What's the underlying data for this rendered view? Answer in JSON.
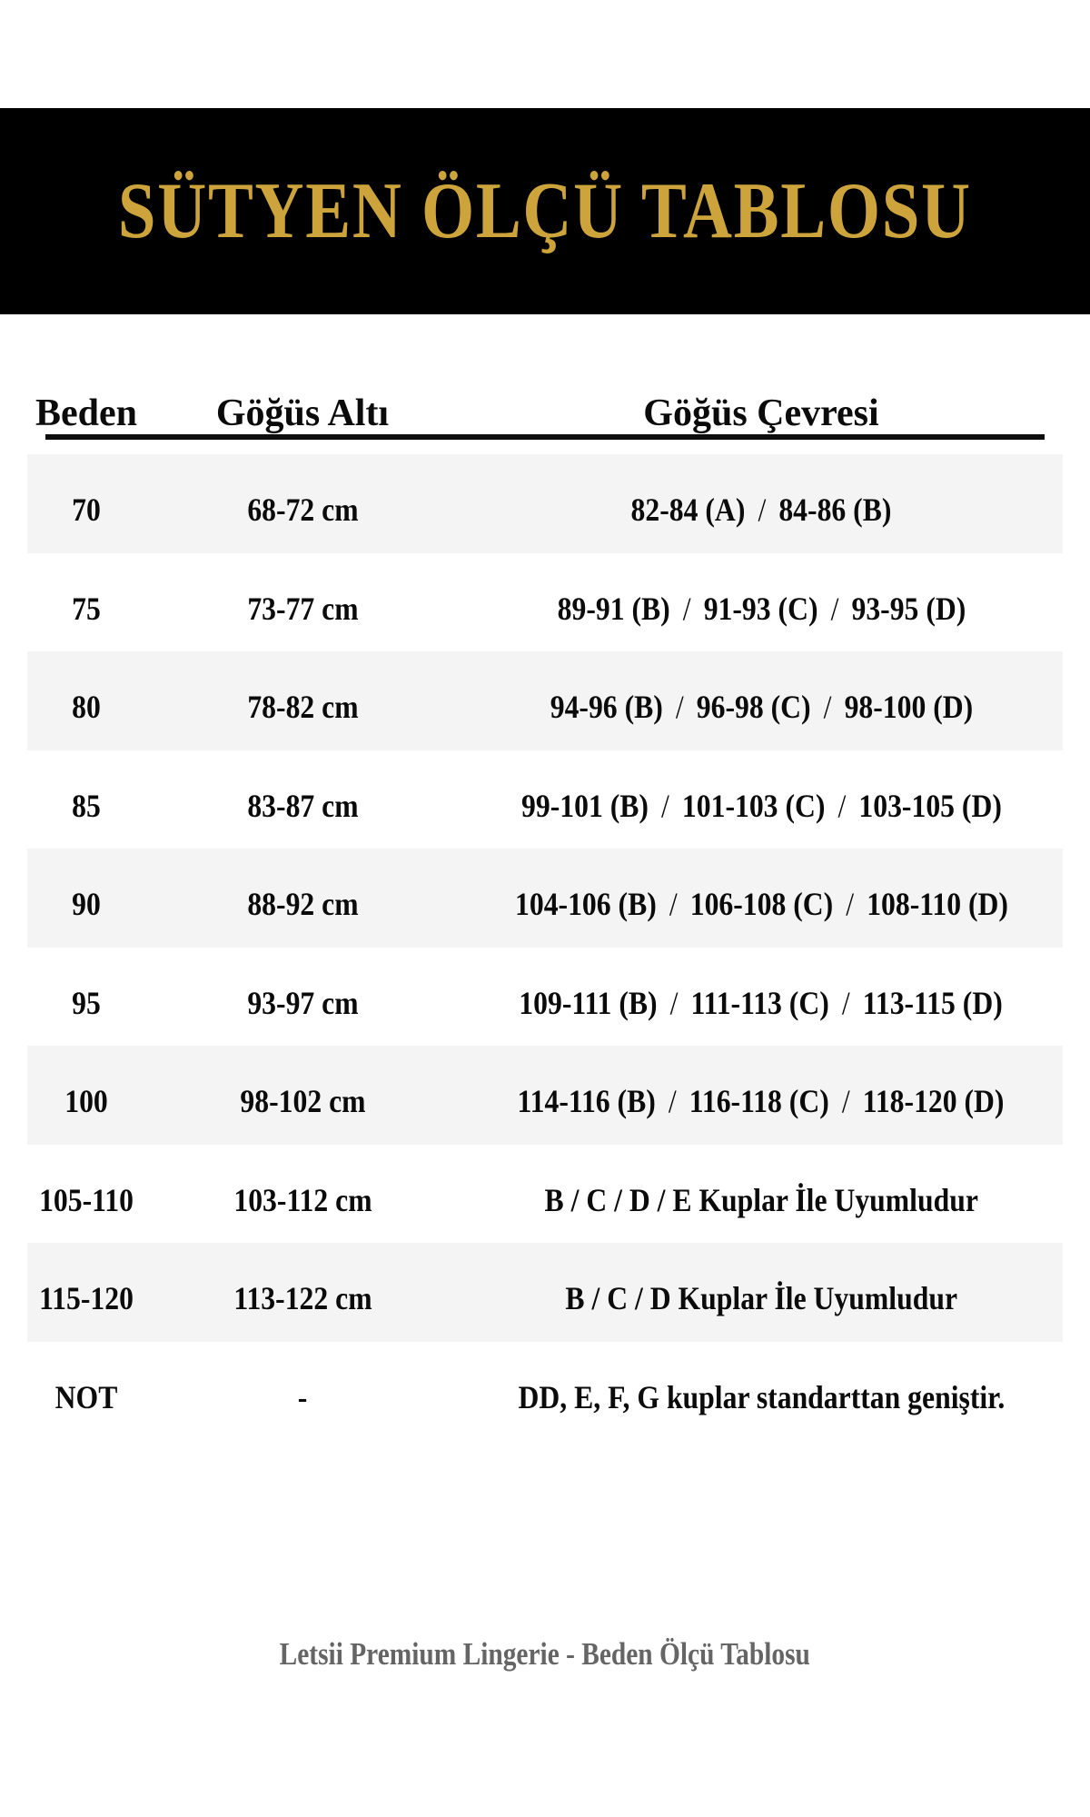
{
  "banner": {
    "title": "SÜTYEN ÖLÇÜ TABLOSU"
  },
  "table": {
    "headers": [
      "Beden",
      "Göğüs Altı",
      "Göğüs Çevresi"
    ],
    "separator": "/",
    "rows": [
      {
        "beden": "70",
        "gogus_alti": "68-72 cm",
        "gogus_cevresi": [
          "82-84 (A)",
          "84-86 (B)"
        ]
      },
      {
        "beden": "75",
        "gogus_alti": "73-77 cm",
        "gogus_cevresi": [
          "89-91 (B)",
          "91-93 (C)",
          "93-95 (D)"
        ]
      },
      {
        "beden": "80",
        "gogus_alti": "78-82 cm",
        "gogus_cevresi": [
          "94-96 (B)",
          "96-98 (C)",
          "98-100 (D)"
        ]
      },
      {
        "beden": "85",
        "gogus_alti": "83-87 cm",
        "gogus_cevresi": [
          "99-101 (B)",
          "101-103 (C)",
          "103-105 (D)"
        ]
      },
      {
        "beden": "90",
        "gogus_alti": "88-92 cm",
        "gogus_cevresi": [
          "104-106 (B)",
          "106-108 (C)",
          "108-110 (D)"
        ]
      },
      {
        "beden": "95",
        "gogus_alti": "93-97 cm",
        "gogus_cevresi": [
          "109-111 (B)",
          "111-113 (C)",
          "113-115 (D)"
        ]
      },
      {
        "beden": "100",
        "gogus_alti": "98-102 cm",
        "gogus_cevresi": [
          "114-116 (B)",
          "116-118 (C)",
          "118-120 (D)"
        ]
      },
      {
        "beden": "105-110",
        "gogus_alti": "103-112 cm",
        "gogus_cevresi": [
          "B / C / D / E  Kuplar İle Uyumludur"
        ]
      },
      {
        "beden": "115-120",
        "gogus_alti": "113-122 cm",
        "gogus_cevresi": [
          "B / C / D  Kuplar İle Uyumludur"
        ]
      },
      {
        "beden": "NOT",
        "gogus_alti": "-",
        "gogus_cevresi": [
          "DD, E, F, G kuplar standarttan geniştir."
        ]
      }
    ]
  },
  "footer": {
    "text": "Letsii Premium Lingerie - Beden Ölçü Tablosu"
  },
  "colors": {
    "banner_bg": "#000000",
    "title_gold": "#CDA43C",
    "row_alt": "#f4f4f4",
    "row_base": "#ffffff",
    "rule": "#0d0d0d",
    "text": "#0b0b0b",
    "footer_gray": "#656565"
  }
}
